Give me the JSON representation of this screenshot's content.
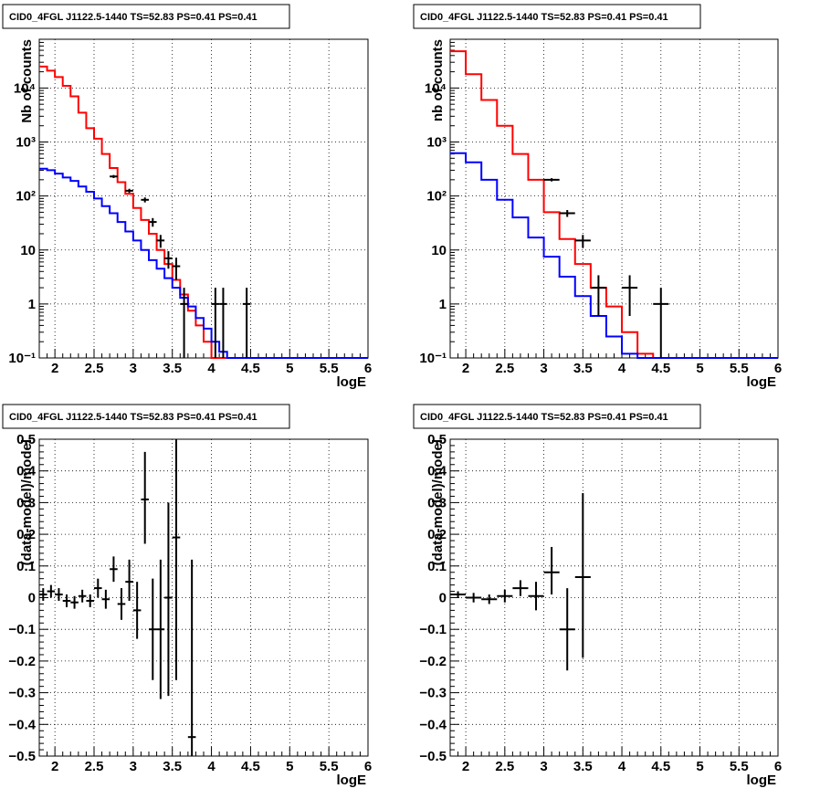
{
  "chart_data": [
    {
      "type": "line",
      "title": "CID0_4FGL J1122.5-1440 TS=52.83 PS=0.41 PS=0.41",
      "xlabel": "logE",
      "ylabel": "Nb of counts",
      "xlim": [
        1.8,
        6.0
      ],
      "ylim": [
        0.1,
        80000
      ],
      "yscale": "log",
      "grid": true,
      "xticks": [
        2,
        2.5,
        3,
        3.5,
        4,
        4.5,
        5,
        5.5,
        6
      ],
      "xtick_labels": [
        "2",
        "2.5",
        "3",
        "3.5",
        "4",
        "4.5",
        "5",
        "5.5",
        "6"
      ],
      "yticks": [
        0.1,
        1,
        10,
        100,
        1000,
        10000
      ],
      "ytick_labels": [
        "10⁻¹",
        "1",
        "10",
        "10²",
        "10³",
        "10⁴"
      ],
      "bin_edges": [
        1.8,
        1.9,
        2.0,
        2.1,
        2.2,
        2.3,
        2.4,
        2.5,
        2.6,
        2.7,
        2.8,
        2.9,
        3.0,
        3.1,
        3.2,
        3.3,
        3.4,
        3.5,
        3.6,
        3.7,
        3.8,
        3.9,
        4.0,
        4.1,
        4.2,
        4.3,
        4.4,
        4.5,
        4.6,
        4.7,
        4.8,
        4.9,
        5.0,
        5.1,
        5.2,
        5.3,
        5.4,
        5.5,
        5.6,
        5.7,
        5.8,
        5.9,
        6.0
      ],
      "series": [
        {
          "color": "#ff0000",
          "values": [
            25000,
            21000,
            16000,
            11000,
            7000,
            3500,
            1800,
            1150,
            600,
            330,
            180,
            110,
            60,
            36,
            20,
            10,
            5.5,
            2.8,
            1.5,
            0.75,
            0.4,
            0.2,
            0.1,
            0.1,
            0.1,
            0.1,
            0.1,
            0.1,
            0.1,
            0.1,
            0.1,
            0.1,
            0.1,
            0.1,
            0.1,
            0.1,
            0.1,
            0.1,
            0.1,
            0.1,
            0.1,
            0.1
          ]
        },
        {
          "color": "#0000ff",
          "values": [
            320,
            300,
            260,
            220,
            190,
            150,
            120,
            90,
            65,
            48,
            33,
            22,
            15,
            10,
            6.5,
            4.5,
            3,
            2,
            1.3,
            0.9,
            0.55,
            0.35,
            0.2,
            0.13,
            0.1,
            0.1,
            0.1,
            0.1,
            0.1,
            0.1,
            0.1,
            0.1,
            0.1,
            0.1,
            0.1,
            0.1,
            0.1,
            0.1,
            0.1,
            0.1,
            0.1,
            0.1
          ]
        }
      ],
      "points": [
        {
          "x": 2.75,
          "xerr": 0.05,
          "y": 230,
          "lo": 215,
          "hi": 245
        },
        {
          "x": 2.95,
          "xerr": 0.05,
          "y": 125,
          "lo": 114,
          "hi": 136
        },
        {
          "x": 3.15,
          "xerr": 0.05,
          "y": 85,
          "lo": 76,
          "hi": 94
        },
        {
          "x": 3.25,
          "xerr": 0.05,
          "y": 33,
          "lo": 27,
          "hi": 39
        },
        {
          "x": 3.35,
          "xerr": 0.05,
          "y": 15,
          "lo": 11,
          "hi": 19
        },
        {
          "x": 3.45,
          "xerr": 0.05,
          "y": 7,
          "lo": 4.5,
          "hi": 9.5
        },
        {
          "x": 3.55,
          "xerr": 0.05,
          "y": 5,
          "lo": 2.8,
          "hi": 7.2
        },
        {
          "x": 3.65,
          "xerr": 0.05,
          "y": 1,
          "lo": 0.1,
          "hi": 2
        },
        {
          "x": 4.05,
          "xerr": 0.05,
          "y": 1,
          "lo": 0.1,
          "hi": 2
        },
        {
          "x": 4.15,
          "xerr": 0.05,
          "y": 1,
          "lo": 0.1,
          "hi": 2
        },
        {
          "x": 4.45,
          "xerr": 0.05,
          "y": 1,
          "lo": 0.1,
          "hi": 2
        }
      ]
    },
    {
      "type": "line",
      "title": "CID0_4FGL J1122.5-1440 TS=52.83 PS=0.41 PS=0.41",
      "xlabel": "logE",
      "ylabel": "nb of counts",
      "xlim": [
        1.8,
        6.0
      ],
      "ylim": [
        0.1,
        80000
      ],
      "yscale": "log",
      "grid": true,
      "xticks": [
        2,
        2.5,
        3,
        3.5,
        4,
        4.5,
        5,
        5.5,
        6
      ],
      "xtick_labels": [
        "2",
        "2.5",
        "3",
        "3.5",
        "4",
        "4.5",
        "5",
        "5.5",
        "6"
      ],
      "yticks": [
        0.1,
        1,
        10,
        100,
        1000,
        10000
      ],
      "ytick_labels": [
        "10⁻¹",
        "1",
        "10",
        "10²",
        "10³",
        "10⁴"
      ],
      "bin_edges": [
        1.8,
        2.0,
        2.2,
        2.4,
        2.6,
        2.8,
        3.0,
        3.2,
        3.4,
        3.6,
        3.8,
        4.0,
        4.2,
        4.4,
        4.6,
        4.8,
        5.0,
        5.2,
        5.4,
        5.6,
        5.8,
        6.0
      ],
      "series": [
        {
          "color": "#ff0000",
          "values": [
            48000,
            18000,
            6000,
            2000,
            600,
            200,
            50,
            16,
            5.5,
            2,
            0.9,
            0.3,
            0.12,
            0.1,
            0.1,
            0.1,
            0.1,
            0.1,
            0.1,
            0.1,
            0.1
          ]
        },
        {
          "color": "#0000ff",
          "values": [
            620,
            420,
            200,
            85,
            40,
            17,
            7.5,
            3.2,
            1.4,
            0.6,
            0.25,
            0.12,
            0.1,
            0.1,
            0.1,
            0.1,
            0.1,
            0.1,
            0.1,
            0.1,
            0.1
          ]
        }
      ],
      "points": [
        {
          "x": 3.1,
          "xerr": 0.1,
          "y": 200,
          "lo": 186,
          "hi": 214
        },
        {
          "x": 3.3,
          "xerr": 0.1,
          "y": 48,
          "lo": 41,
          "hi": 55
        },
        {
          "x": 3.5,
          "xerr": 0.1,
          "y": 15,
          "lo": 11,
          "hi": 19
        },
        {
          "x": 3.7,
          "xerr": 0.1,
          "y": 2,
          "lo": 0.6,
          "hi": 3.4
        },
        {
          "x": 4.1,
          "xerr": 0.1,
          "y": 2,
          "lo": 0.6,
          "hi": 3.4
        },
        {
          "x": 4.5,
          "xerr": 0.1,
          "y": 1,
          "lo": 0.1,
          "hi": 2
        }
      ]
    },
    {
      "type": "scatter",
      "title": "CID0_4FGL J1122.5-1440 TS=52.83 PS=0.41 PS=0.41",
      "xlabel": "logE",
      "ylabel": "(data-model)/model",
      "xlim": [
        1.8,
        6.0
      ],
      "ylim": [
        -0.5,
        0.5
      ],
      "grid": true,
      "xticks": [
        2,
        2.5,
        3,
        3.5,
        4,
        4.5,
        5,
        5.5,
        6
      ],
      "xtick_labels": [
        "2",
        "2.5",
        "3",
        "3.5",
        "4",
        "4.5",
        "5",
        "5.5",
        "6"
      ],
      "yticks": [
        -0.5,
        -0.4,
        -0.3,
        -0.2,
        -0.1,
        0,
        0.1,
        0.2,
        0.3,
        0.4,
        0.5
      ],
      "ytick_labels": [
        "−0.5",
        "−0.4",
        "−0.3",
        "−0.2",
        "−0.1",
        "0",
        "0.1",
        "0.2",
        "0.3",
        "0.4",
        "0.5"
      ],
      "points": [
        {
          "x": 1.85,
          "xerr": 0.05,
          "y": 0.01,
          "lo": -0.01,
          "hi": 0.03
        },
        {
          "x": 1.95,
          "xerr": 0.05,
          "y": 0.02,
          "lo": 0.0,
          "hi": 0.04
        },
        {
          "x": 2.05,
          "xerr": 0.05,
          "y": 0.01,
          "lo": -0.01,
          "hi": 0.03
        },
        {
          "x": 2.15,
          "xerr": 0.05,
          "y": -0.01,
          "lo": -0.03,
          "hi": 0.01
        },
        {
          "x": 2.25,
          "xerr": 0.05,
          "y": -0.015,
          "lo": -0.035,
          "hi": 0.005
        },
        {
          "x": 2.35,
          "xerr": 0.05,
          "y": 0.005,
          "lo": -0.015,
          "hi": 0.025
        },
        {
          "x": 2.45,
          "xerr": 0.05,
          "y": -0.01,
          "lo": -0.03,
          "hi": 0.01
        },
        {
          "x": 2.55,
          "xerr": 0.05,
          "y": 0.03,
          "lo": 0.0,
          "hi": 0.06
        },
        {
          "x": 2.65,
          "xerr": 0.05,
          "y": -0.005,
          "lo": -0.035,
          "hi": 0.025
        },
        {
          "x": 2.75,
          "xerr": 0.05,
          "y": 0.09,
          "lo": 0.05,
          "hi": 0.13
        },
        {
          "x": 2.85,
          "xerr": 0.05,
          "y": -0.02,
          "lo": -0.07,
          "hi": 0.03
        },
        {
          "x": 2.95,
          "xerr": 0.05,
          "y": 0.05,
          "lo": -0.01,
          "hi": 0.12
        },
        {
          "x": 3.05,
          "xerr": 0.05,
          "y": -0.04,
          "lo": -0.13,
          "hi": 0.05
        },
        {
          "x": 3.15,
          "xerr": 0.05,
          "y": 0.31,
          "lo": 0.17,
          "hi": 0.46
        },
        {
          "x": 3.25,
          "xerr": 0.05,
          "y": -0.1,
          "lo": -0.26,
          "hi": 0.06
        },
        {
          "x": 3.35,
          "xerr": 0.05,
          "y": -0.1,
          "lo": -0.32,
          "hi": 0.12
        },
        {
          "x": 3.45,
          "xerr": 0.05,
          "y": 0.0,
          "lo": -0.31,
          "hi": 0.3
        },
        {
          "x": 3.55,
          "xerr": 0.05,
          "y": 0.19,
          "lo": -0.26,
          "hi": 0.5
        },
        {
          "x": 3.75,
          "xerr": 0.05,
          "y": -0.44,
          "lo": -0.5,
          "hi": 0.12
        }
      ]
    },
    {
      "type": "scatter",
      "title": "CID0_4FGL J1122.5-1440 TS=52.83 PS=0.41 PS=0.41",
      "xlabel": "logE",
      "ylabel": "(data-model)/model",
      "xlim": [
        1.8,
        6.0
      ],
      "ylim": [
        -0.5,
        0.5
      ],
      "grid": true,
      "xticks": [
        2,
        2.5,
        3,
        3.5,
        4,
        4.5,
        5,
        5.5,
        6
      ],
      "xtick_labels": [
        "2",
        "2.5",
        "3",
        "3.5",
        "4",
        "4.5",
        "5",
        "5.5",
        "6"
      ],
      "yticks": [
        -0.5,
        -0.4,
        -0.3,
        -0.2,
        -0.1,
        0,
        0.1,
        0.2,
        0.3,
        0.4,
        0.5
      ],
      "ytick_labels": [
        "−0.5",
        "−0.4",
        "−0.3",
        "−0.2",
        "−0.1",
        "0",
        "0.1",
        "0.2",
        "0.3",
        "0.4",
        "0.5"
      ],
      "points": [
        {
          "x": 1.9,
          "xerr": 0.1,
          "y": 0.01,
          "lo": 0.0,
          "hi": 0.02
        },
        {
          "x": 2.1,
          "xerr": 0.1,
          "y": 0.0,
          "lo": -0.015,
          "hi": 0.015
        },
        {
          "x": 2.3,
          "xerr": 0.1,
          "y": -0.005,
          "lo": -0.02,
          "hi": 0.01
        },
        {
          "x": 2.5,
          "xerr": 0.1,
          "y": 0.005,
          "lo": -0.015,
          "hi": 0.025
        },
        {
          "x": 2.7,
          "xerr": 0.1,
          "y": 0.03,
          "lo": 0.005,
          "hi": 0.055
        },
        {
          "x": 2.9,
          "xerr": 0.1,
          "y": 0.005,
          "lo": -0.04,
          "hi": 0.05
        },
        {
          "x": 3.1,
          "xerr": 0.1,
          "y": 0.08,
          "lo": 0.01,
          "hi": 0.16
        },
        {
          "x": 3.3,
          "xerr": 0.1,
          "y": -0.1,
          "lo": -0.23,
          "hi": 0.03
        },
        {
          "x": 3.5,
          "xerr": 0.1,
          "y": 0.065,
          "lo": -0.19,
          "hi": 0.33
        }
      ]
    }
  ]
}
